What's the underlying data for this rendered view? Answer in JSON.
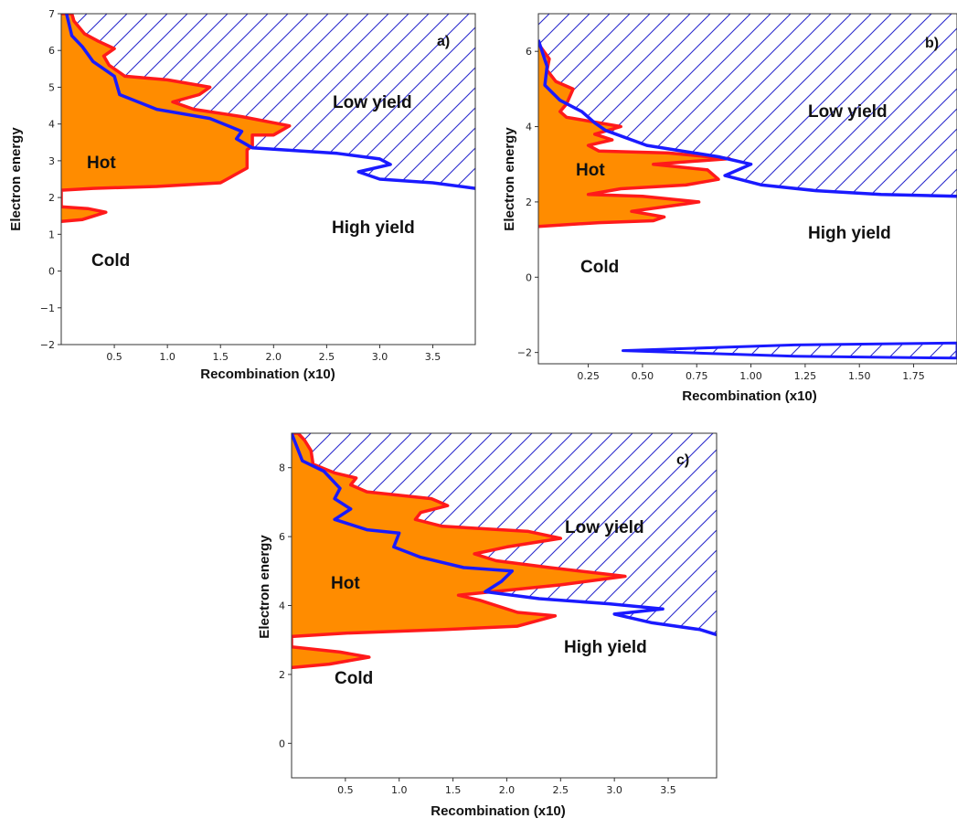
{
  "colors": {
    "hot_fill": "#FF8C00",
    "hot_line": "#FF1A1A",
    "yield_line": "#1A1AFF",
    "hatch": "#2B2BCC"
  },
  "chart_data": [
    {
      "type": "area",
      "panel_label": "a)",
      "xlabel": "Recombination (x10)",
      "ylabel": "Electron energy",
      "xlim": [
        0,
        3.9
      ],
      "ylim": [
        -2,
        7
      ],
      "xticks": [
        "0.5",
        "1.0",
        "1.5",
        "2.0",
        "2.5",
        "3.0",
        "3.5"
      ],
      "yticks": [
        "−2",
        "−1",
        "0",
        "1",
        "2",
        "3",
        "4",
        "5",
        "6",
        "7"
      ],
      "region_labels": {
        "hot": "Hot",
        "cold": "Cold",
        "low_yield": "Low yield",
        "high_yield": "High yield"
      },
      "series": [
        {
          "name": "Hot",
          "points": [
            [
              0.0,
              1.35
            ],
            [
              0.2,
              1.4
            ],
            [
              0.42,
              1.6
            ],
            [
              0.25,
              1.7
            ],
            [
              0.0,
              1.75
            ],
            [
              0.0,
              2.2
            ],
            [
              0.3,
              2.25
            ],
            [
              0.9,
              2.3
            ],
            [
              1.5,
              2.4
            ],
            [
              1.75,
              2.8
            ],
            [
              1.75,
              3.3
            ],
            [
              1.8,
              3.4
            ],
            [
              1.8,
              3.7
            ],
            [
              2.0,
              3.7
            ],
            [
              2.15,
              3.95
            ],
            [
              1.7,
              4.2
            ],
            [
              1.25,
              4.4
            ],
            [
              1.05,
              4.6
            ],
            [
              1.3,
              4.8
            ],
            [
              1.4,
              5.0
            ],
            [
              1.0,
              5.2
            ],
            [
              0.6,
              5.3
            ],
            [
              0.45,
              5.6
            ],
            [
              0.4,
              5.85
            ],
            [
              0.5,
              6.05
            ],
            [
              0.35,
              6.25
            ],
            [
              0.22,
              6.45
            ],
            [
              0.12,
              6.8
            ],
            [
              0.1,
              7.0
            ],
            [
              0.0,
              7.0
            ]
          ]
        },
        {
          "name": "Yield boundary",
          "points": [
            [
              0.05,
              7.0
            ],
            [
              0.1,
              6.4
            ],
            [
              0.2,
              6.1
            ],
            [
              0.3,
              5.7
            ],
            [
              0.5,
              5.3
            ],
            [
              0.55,
              4.8
            ],
            [
              0.9,
              4.4
            ],
            [
              1.4,
              4.15
            ],
            [
              1.7,
              3.8
            ],
            [
              1.65,
              3.6
            ],
            [
              1.8,
              3.35
            ],
            [
              2.6,
              3.2
            ],
            [
              3.0,
              3.05
            ],
            [
              3.1,
              2.9
            ],
            [
              2.8,
              2.7
            ],
            [
              3.0,
              2.5
            ],
            [
              3.5,
              2.4
            ],
            [
              3.9,
              2.25
            ]
          ]
        }
      ]
    },
    {
      "type": "area",
      "panel_label": "b)",
      "xlabel": "Recombination (x10)",
      "ylabel": "Electron energy",
      "xlim": [
        0.02,
        1.95
      ],
      "ylim": [
        -2.3,
        7
      ],
      "xticks": [
        "0.25",
        "0.50",
        "0.75",
        "1.00",
        "1.25",
        "1.50",
        "1.75"
      ],
      "yticks": [
        "−2",
        "0",
        "2",
        "4",
        "6"
      ],
      "region_labels": {
        "hot": "Hot",
        "cold": "Cold",
        "low_yield": "Low yield",
        "high_yield": "High yield"
      },
      "series": [
        {
          "name": "Hot",
          "points": [
            [
              0.02,
              1.35
            ],
            [
              0.3,
              1.45
            ],
            [
              0.55,
              1.5
            ],
            [
              0.6,
              1.6
            ],
            [
              0.45,
              1.75
            ],
            [
              0.7,
              1.95
            ],
            [
              0.76,
              2.0
            ],
            [
              0.5,
              2.15
            ],
            [
              0.25,
              2.2
            ],
            [
              0.4,
              2.35
            ],
            [
              0.7,
              2.45
            ],
            [
              0.85,
              2.6
            ],
            [
              0.8,
              2.85
            ],
            [
              0.55,
              3.0
            ],
            [
              0.9,
              3.15
            ],
            [
              0.62,
              3.3
            ],
            [
              0.3,
              3.35
            ],
            [
              0.25,
              3.5
            ],
            [
              0.36,
              3.65
            ],
            [
              0.28,
              3.8
            ],
            [
              0.4,
              4.0
            ],
            [
              0.15,
              4.25
            ],
            [
              0.12,
              4.4
            ],
            [
              0.15,
              4.6
            ],
            [
              0.18,
              5.0
            ],
            [
              0.1,
              5.2
            ],
            [
              0.06,
              5.5
            ],
            [
              0.07,
              5.8
            ],
            [
              0.02,
              6.2
            ]
          ]
        },
        {
          "name": "Yield boundary",
          "points": [
            [
              0.02,
              6.3
            ],
            [
              0.06,
              5.6
            ],
            [
              0.05,
              5.1
            ],
            [
              0.12,
              4.7
            ],
            [
              0.22,
              4.4
            ],
            [
              0.28,
              4.1
            ],
            [
              0.33,
              3.9
            ],
            [
              0.52,
              3.5
            ],
            [
              0.85,
              3.2
            ],
            [
              1.0,
              3.0
            ],
            [
              0.88,
              2.7
            ],
            [
              1.05,
              2.45
            ],
            [
              1.3,
              2.3
            ],
            [
              1.6,
              2.2
            ],
            [
              1.95,
              2.15
            ]
          ]
        },
        {
          "name": "Lower boundary",
          "points": [
            [
              1.95,
              -1.75
            ],
            [
              1.2,
              -1.8
            ],
            [
              0.41,
              -1.95
            ],
            [
              1.2,
              -2.1
            ],
            [
              1.95,
              -2.15
            ]
          ]
        }
      ]
    },
    {
      "type": "area",
      "panel_label": "c)",
      "xlabel": "Recombination (x10)",
      "ylabel": "Electron energy",
      "xlim": [
        0,
        3.95
      ],
      "ylim": [
        -1,
        9
      ],
      "xticks": [
        "0.5",
        "1.0",
        "1.5",
        "2.0",
        "2.5",
        "3.0",
        "3.5"
      ],
      "yticks": [
        "0",
        "2",
        "4",
        "6",
        "8"
      ],
      "region_labels": {
        "hot": "Hot",
        "cold": "Cold",
        "low_yield": "Low yield",
        "high_yield": "High yield"
      },
      "series": [
        {
          "name": "Hot",
          "points": [
            [
              0.0,
              2.2
            ],
            [
              0.35,
              2.3
            ],
            [
              0.72,
              2.5
            ],
            [
              0.45,
              2.65
            ],
            [
              0.0,
              2.8
            ],
            [
              0.0,
              3.1
            ],
            [
              0.5,
              3.2
            ],
            [
              1.4,
              3.3
            ],
            [
              2.1,
              3.4
            ],
            [
              2.45,
              3.7
            ],
            [
              2.1,
              3.8
            ],
            [
              1.75,
              4.15
            ],
            [
              1.55,
              4.3
            ],
            [
              2.5,
              4.6
            ],
            [
              3.1,
              4.85
            ],
            [
              2.4,
              5.1
            ],
            [
              1.9,
              5.3
            ],
            [
              1.7,
              5.5
            ],
            [
              2.0,
              5.7
            ],
            [
              2.5,
              5.95
            ],
            [
              2.2,
              6.15
            ],
            [
              1.4,
              6.3
            ],
            [
              1.15,
              6.5
            ],
            [
              1.2,
              6.7
            ],
            [
              1.45,
              6.9
            ],
            [
              1.3,
              7.1
            ],
            [
              0.7,
              7.3
            ],
            [
              0.55,
              7.5
            ],
            [
              0.6,
              7.7
            ],
            [
              0.4,
              7.85
            ],
            [
              0.2,
              8.1
            ],
            [
              0.18,
              8.5
            ],
            [
              0.12,
              8.8
            ],
            [
              0.06,
              9.0
            ],
            [
              0.0,
              9.0
            ]
          ]
        },
        {
          "name": "Yield boundary",
          "points": [
            [
              0.0,
              9.0
            ],
            [
              0.05,
              8.6
            ],
            [
              0.1,
              8.2
            ],
            [
              0.3,
              7.9
            ],
            [
              0.45,
              7.4
            ],
            [
              0.4,
              7.1
            ],
            [
              0.55,
              6.8
            ],
            [
              0.4,
              6.5
            ],
            [
              0.7,
              6.2
            ],
            [
              1.0,
              6.1
            ],
            [
              0.95,
              5.7
            ],
            [
              1.2,
              5.4
            ],
            [
              1.6,
              5.1
            ],
            [
              2.05,
              5.0
            ],
            [
              1.95,
              4.7
            ],
            [
              1.8,
              4.4
            ],
            [
              2.3,
              4.2
            ],
            [
              2.95,
              4.05
            ],
            [
              3.45,
              3.9
            ],
            [
              3.0,
              3.75
            ],
            [
              3.35,
              3.5
            ],
            [
              3.8,
              3.3
            ],
            [
              3.95,
              3.15
            ]
          ]
        }
      ]
    }
  ]
}
